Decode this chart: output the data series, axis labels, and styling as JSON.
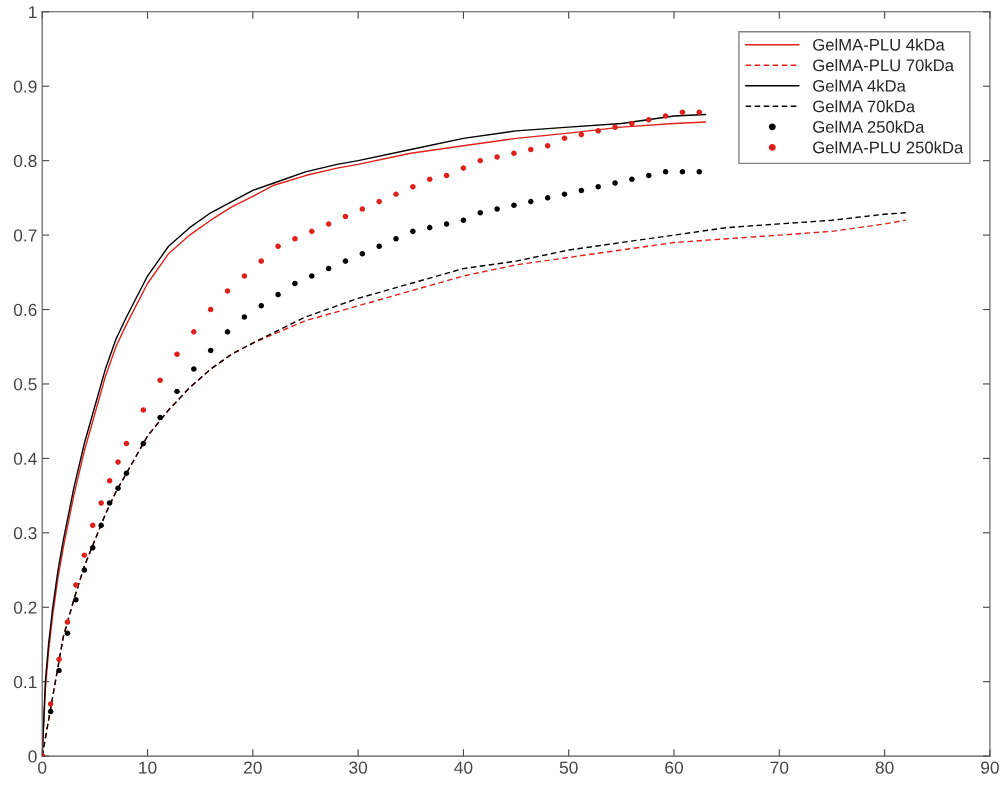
{
  "chart_data": {
    "type": "line",
    "xlim": [
      0,
      90
    ],
    "ylim": [
      0,
      1
    ],
    "xticks": [
      0,
      10,
      20,
      30,
      40,
      50,
      60,
      70,
      80,
      90
    ],
    "yticks": [
      0,
      0.1,
      0.2,
      0.3,
      0.4,
      0.5,
      0.6,
      0.7,
      0.8,
      0.9,
      1
    ],
    "grid": false,
    "legend": "top right",
    "series": [
      {
        "name": "GelMA-PLU 4kDa",
        "line_style": "solid",
        "color": "#e0201b",
        "x": [
          0,
          0.3,
          0.6,
          1,
          1.5,
          2,
          3,
          4,
          5,
          6,
          7,
          8,
          10,
          12,
          14,
          16,
          18,
          20,
          22,
          25,
          28,
          30,
          35,
          40,
          45,
          50,
          55,
          60,
          63
        ],
        "values": [
          0,
          0.09,
          0.14,
          0.19,
          0.24,
          0.28,
          0.35,
          0.41,
          0.46,
          0.51,
          0.55,
          0.58,
          0.635,
          0.675,
          0.7,
          0.72,
          0.738,
          0.752,
          0.767,
          0.78,
          0.79,
          0.795,
          0.81,
          0.82,
          0.83,
          0.837,
          0.845,
          0.85,
          0.852
        ]
      },
      {
        "name": "GelMA-PLU 70kDa",
        "line_style": "dashed",
        "color": "#e0201b",
        "x": [
          0,
          0.5,
          1,
          2,
          3,
          4,
          5,
          6,
          7,
          8,
          10,
          12,
          14,
          16,
          18,
          20,
          25,
          30,
          35,
          40,
          45,
          50,
          55,
          60,
          65,
          70,
          75,
          80,
          82
        ],
        "values": [
          0,
          0.04,
          0.08,
          0.16,
          0.21,
          0.255,
          0.29,
          0.325,
          0.355,
          0.38,
          0.43,
          0.465,
          0.495,
          0.52,
          0.54,
          0.555,
          0.585,
          0.605,
          0.625,
          0.645,
          0.66,
          0.67,
          0.68,
          0.69,
          0.695,
          0.7,
          0.705,
          0.715,
          0.72
        ]
      },
      {
        "name": "GelMA 4kDa",
        "line_style": "solid",
        "color": "#000000",
        "x": [
          0,
          0.3,
          0.6,
          1,
          1.5,
          2,
          3,
          4,
          5,
          6,
          7,
          8,
          10,
          12,
          14,
          16,
          18,
          20,
          22,
          25,
          28,
          30,
          35,
          40,
          45,
          50,
          55,
          60,
          63
        ],
        "values": [
          0,
          0.1,
          0.15,
          0.2,
          0.25,
          0.29,
          0.36,
          0.42,
          0.47,
          0.52,
          0.56,
          0.59,
          0.645,
          0.685,
          0.71,
          0.73,
          0.745,
          0.76,
          0.77,
          0.785,
          0.795,
          0.8,
          0.815,
          0.83,
          0.84,
          0.845,
          0.85,
          0.86,
          0.862
        ]
      },
      {
        "name": "GelMA 70kDa",
        "line_style": "dashed",
        "color": "#000000",
        "x": [
          0,
          0.5,
          1,
          2,
          3,
          4,
          5,
          6,
          7,
          8,
          10,
          12,
          14,
          16,
          18,
          20,
          25,
          30,
          35,
          40,
          45,
          50,
          55,
          60,
          65,
          70,
          75,
          80,
          82
        ],
        "values": [
          0,
          0.04,
          0.08,
          0.16,
          0.21,
          0.255,
          0.29,
          0.325,
          0.355,
          0.38,
          0.43,
          0.465,
          0.495,
          0.52,
          0.54,
          0.555,
          0.59,
          0.615,
          0.635,
          0.655,
          0.665,
          0.68,
          0.69,
          0.7,
          0.71,
          0.715,
          0.72,
          0.728,
          0.73
        ]
      },
      {
        "name": "GelMA 250kDa",
        "type": "scatter",
        "marker": "circle",
        "color": "#000000",
        "x": [
          0,
          0.8,
          1.6,
          2.4,
          3.2,
          4,
          4.8,
          5.6,
          6.4,
          7.2,
          8,
          9.6,
          11.2,
          12.8,
          14.4,
          16,
          17.6,
          19.2,
          20.8,
          22.4,
          24,
          25.6,
          27.2,
          28.8,
          30.4,
          32,
          33.6,
          35.2,
          36.8,
          38.4,
          40,
          41.6,
          43.2,
          44.8,
          46.4,
          48,
          49.6,
          51.2,
          52.8,
          54.4,
          56,
          57.6,
          59.2,
          60.8,
          62.4
        ],
        "values": [
          0,
          0.06,
          0.115,
          0.165,
          0.21,
          0.25,
          0.28,
          0.31,
          0.34,
          0.36,
          0.38,
          0.42,
          0.455,
          0.49,
          0.52,
          0.545,
          0.57,
          0.59,
          0.605,
          0.62,
          0.635,
          0.645,
          0.655,
          0.665,
          0.675,
          0.685,
          0.695,
          0.705,
          0.71,
          0.715,
          0.72,
          0.73,
          0.735,
          0.74,
          0.745,
          0.75,
          0.755,
          0.76,
          0.765,
          0.77,
          0.775,
          0.78,
          0.785,
          0.785,
          0.785
        ]
      },
      {
        "name": "GelMA-PLU 250kDa",
        "type": "scatter",
        "marker": "circle",
        "color": "#e0201b",
        "x": [
          0,
          0.8,
          1.6,
          2.4,
          3.2,
          4,
          4.8,
          5.6,
          6.4,
          7.2,
          8,
          9.6,
          11.2,
          12.8,
          14.4,
          16,
          17.6,
          19.2,
          20.8,
          22.4,
          24,
          25.6,
          27.2,
          28.8,
          30.4,
          32,
          33.6,
          35.2,
          36.8,
          38.4,
          40,
          41.6,
          43.2,
          44.8,
          46.4,
          48,
          49.6,
          51.2,
          52.8,
          54.4,
          56,
          57.6,
          59.2,
          60.8,
          62.4
        ],
        "values": [
          0,
          0.07,
          0.13,
          0.18,
          0.23,
          0.27,
          0.31,
          0.34,
          0.37,
          0.395,
          0.42,
          0.465,
          0.505,
          0.54,
          0.57,
          0.6,
          0.625,
          0.645,
          0.665,
          0.685,
          0.695,
          0.705,
          0.715,
          0.725,
          0.735,
          0.745,
          0.755,
          0.765,
          0.775,
          0.78,
          0.79,
          0.8,
          0.805,
          0.81,
          0.815,
          0.82,
          0.83,
          0.835,
          0.84,
          0.845,
          0.85,
          0.855,
          0.86,
          0.865,
          0.865
        ]
      }
    ]
  }
}
